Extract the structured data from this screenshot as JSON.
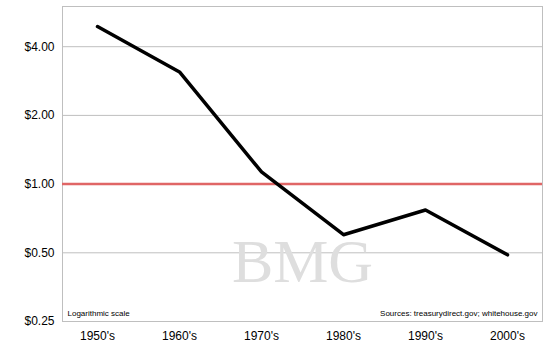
{
  "chart_data": {
    "type": "line",
    "categories": [
      "1950's",
      "1960's",
      "1970's",
      "1980's",
      "1990's",
      "2000's"
    ],
    "values": [
      4.9,
      3.1,
      1.13,
      0.6,
      0.77,
      0.49
    ],
    "color": "#000000",
    "log": "y",
    "ylim": [
      0.25,
      6
    ],
    "yticks": [
      {
        "value": 0.25,
        "label": "$0.25"
      },
      {
        "value": 0.5,
        "label": "$0.50"
      },
      {
        "value": 1,
        "label": "$1.00"
      },
      {
        "value": 2,
        "label": "$2.00"
      },
      {
        "value": 4,
        "label": "$4.00"
      }
    ],
    "grid": true,
    "reference_line": {
      "value": 1,
      "color": "#e06666"
    },
    "annotations": [
      "Logarithmic scale",
      "Sources: treasurydirect.gov; whitehouse.gov"
    ],
    "watermark": "BMG"
  }
}
